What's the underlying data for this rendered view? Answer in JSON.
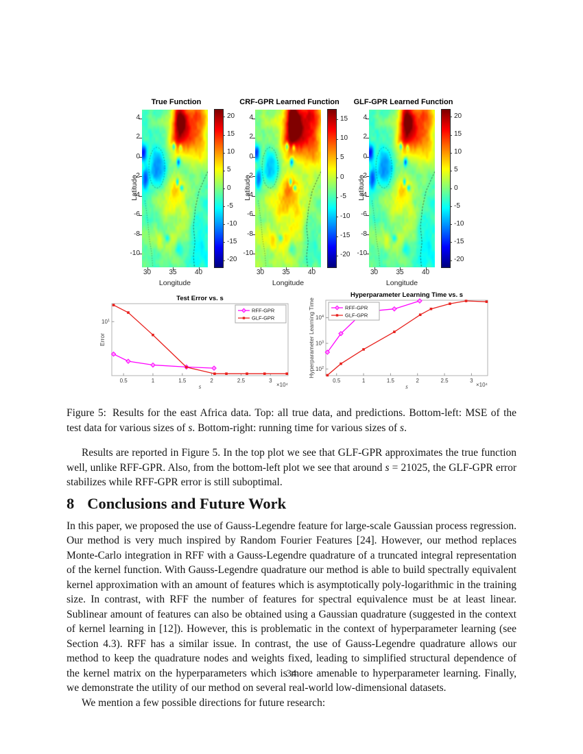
{
  "section": {
    "number": "8",
    "title": "Conclusions and Future Work"
  },
  "page_number": "34",
  "caption": {
    "label": "Figure 5:",
    "seg1": "Results for the east Africa data. Top: all true data, and predictions. Bottom-left: MSE of the test data for various sizes of ",
    "s1": "s",
    "seg2": ". Bottom-right: running time for various sizes of ",
    "s2": "s",
    "seg3": "."
  },
  "paragraph1": {
    "seg1": "Results are reported in Figure 5. In the top plot we see that GLF-GPR approximates the true function well, unlike RFF-GPR. Also, from the bottom-left plot we see that around ",
    "s": "s",
    "seg2": " = 21025, the GLF-GPR error stabilizes while RFF-GPR error is still suboptimal."
  },
  "conclusion_paragraph": "In this paper, we proposed the use of Gauss-Legendre feature for large-scale Gaussian process regression. Our method is very much inspired by Random Fourier Features [24]. However, our method replaces Monte-Carlo integration in RFF with a Gauss-Legendre quadrature of a truncated integral representation of the kernel function. With Gauss-Legendre quadrature our method is able to build spectrally equivalent kernel approximation with an amount of features which is asymptotically poly-logarithmic in the training size. In contrast, with RFF the number of features for spectral equivalence must be at least linear. Sublinear amount of features can also be obtained using a Gaussian quadrature (suggested in the context of kernel learning in [12]). However, this is problematic in the context of hyperparameter learning (see Section 4.3). RFF has a similar issue. In contrast, the use of Gauss-Legendre quadrature allows our method to keep the quadrature nodes and weights fixed, leading to simplified structural dependence of the kernel matrix on the hyperparameters which is more amenable to hyperparameter learning. Finally, we demonstrate the utility of our method on several real-world low-dimensional datasets.",
  "future_line": "We mention a few possible directions for future research:",
  "chart_data": [
    {
      "type": "heatmap",
      "title": "True Function",
      "xlabel": "Longitude",
      "ylabel": "Latitude",
      "xticks": [
        30,
        35,
        40
      ],
      "yticks": [
        4,
        2,
        0,
        -2,
        -4,
        -6,
        -8,
        -10
      ],
      "xlim": [
        29.0,
        41.8
      ],
      "ylim": [
        -11.4,
        4.9
      ],
      "colormap": "jet",
      "colorbar_ticks": [
        20,
        15,
        10,
        5,
        0,
        -5,
        -10,
        -15,
        -20
      ],
      "colorbar_lim": [
        -22,
        22
      ],
      "description": "East Africa temperature-like field: red maximum over Ethiopian highlands (lat 2..5, lon 34..40), light-blue Lake Victoria near (32,-1), small deep-blue rift-valley lakes, cyan-green background, dashed coastline on the east.",
      "field_model": {
        "base_offset": -5.4,
        "octaves": [
          [
            0.5,
            3.6
          ],
          [
            1.1,
            2.6
          ],
          [
            2.6,
            1.6
          ]
        ],
        "bumps": [
          [
            36.3,
            3.9,
            20,
            1.0,
            1.7
          ],
          [
            37.9,
            2.3,
            13,
            2.0,
            1.5
          ],
          [
            39.8,
            4.4,
            11,
            1.6,
            1.1
          ],
          [
            40.8,
            0.5,
            6,
            1.3,
            1.5
          ],
          [
            35.1,
            1.6,
            5,
            0.9,
            0.8
          ],
          [
            36.1,
            -2.9,
            8,
            1.3,
            0.9
          ],
          [
            34.5,
            -4.4,
            6,
            1.6,
            1.0
          ],
          [
            36.8,
            -6.3,
            4,
            1.6,
            1.2
          ],
          [
            33.4,
            -8.7,
            5,
            1.7,
            0.9
          ],
          [
            31.9,
            -1.1,
            -10,
            1.2,
            1.45
          ],
          [
            29.2,
            0.4,
            -15,
            0.5,
            0.6
          ],
          [
            29.6,
            -2.3,
            -9,
            0.5,
            0.8
          ],
          [
            35.2,
            1.1,
            -12,
            0.25,
            0.3
          ],
          [
            36.5,
            1.0,
            -9,
            0.22,
            0.25
          ],
          [
            36.1,
            -0.5,
            -13,
            0.28,
            0.33
          ],
          [
            35.9,
            -2.6,
            -13,
            0.22,
            0.28
          ],
          [
            36.7,
            -3.2,
            -11,
            0.26,
            0.24
          ],
          [
            34.0,
            -8.4,
            -8,
            0.33,
            0.28
          ],
          [
            36.2,
            -9.6,
            -5,
            0.8,
            0.5
          ],
          [
            40.6,
            -8.5,
            -3,
            1.8,
            2.2
          ]
        ],
        "coast": [
          [
            41.8,
            -1.5
          ],
          [
            41.1,
            -2.3
          ],
          [
            40.1,
            -3.5
          ],
          [
            39.4,
            -5.2
          ],
          [
            39.0,
            -7.2
          ],
          [
            39.3,
            -8.8
          ],
          [
            39.0,
            -10.2
          ],
          [
            39.2,
            -11.4
          ]
        ],
        "border": [
          [
            29.6,
            -4.5
          ],
          [
            30.1,
            -6.5
          ],
          [
            30.4,
            -8.3
          ],
          [
            30.9,
            -10.0
          ],
          [
            31.1,
            -11.4
          ]
        ],
        "lake_outline": [
          31.9,
          -1.1,
          1.55,
          2.1
        ]
      }
    },
    {
      "type": "heatmap",
      "title": "CRF-GPR Learned Function",
      "xlabel": "Longitude",
      "ylabel": "Latitude",
      "xticks": [
        30,
        35,
        40
      ],
      "yticks": [
        4,
        2,
        0,
        -2,
        -4,
        -6,
        -8,
        -10
      ],
      "xlim": [
        29.0,
        41.8
      ],
      "ylim": [
        -11.4,
        4.9
      ],
      "colormap": "jet",
      "colorbar_ticks": [
        15,
        10,
        5,
        0,
        -5,
        -10,
        -15,
        -20
      ],
      "colorbar_lim": [
        -23,
        17.5
      ],
      "description": "RFF/CRF-GPR prediction of the same field; visually similar but smoother."
    },
    {
      "type": "heatmap",
      "title": "GLF-GPR Learned Function",
      "xlabel": "Longitude",
      "ylabel": "Latitude",
      "xticks": [
        30,
        35,
        40
      ],
      "yticks": [
        4,
        2,
        0,
        -2,
        -4,
        -6,
        -8,
        -10
      ],
      "xlim": [
        29.0,
        41.8
      ],
      "ylim": [
        -11.4,
        4.9
      ],
      "colormap": "jet",
      "colorbar_ticks": [
        20,
        15,
        10,
        5,
        0,
        -5,
        -10,
        -15,
        -20
      ],
      "colorbar_lim": [
        -22,
        22
      ],
      "description": "GLF-GPR prediction closely matching the true function."
    },
    {
      "type": "line",
      "title": "Test Error vs. s",
      "xlabel": "s",
      "ylabel": "Error",
      "x_unit_label": "×10⁴",
      "x_scale": "linear",
      "y_scale": "log",
      "xlim": [
        0.3,
        3.3
      ],
      "ylim": [
        1.35,
        19.5
      ],
      "xticks": [
        "0.5",
        "1",
        "1.5",
        "2",
        "2.5",
        "3"
      ],
      "ytick_exponents": [
        1
      ],
      "legend_position": "top-right",
      "series": [
        {
          "name": "RFF-GPR",
          "color": "#ff00ff",
          "marker": "diamond",
          "x": [
            0.33,
            0.58,
            1.0,
            1.57,
            2.04
          ],
          "y": [
            3.0,
            2.3,
            2.0,
            1.86,
            1.78
          ]
        },
        {
          "name": "GLF-GPR",
          "color": "#e8201c",
          "marker": "square",
          "x": [
            0.33,
            0.58,
            1.0,
            1.57,
            2.05,
            2.25,
            2.6,
            2.9,
            3.28
          ],
          "y": [
            18.5,
            14,
            6.1,
            1.85,
            1.45,
            1.45,
            1.45,
            1.45,
            1.45
          ]
        }
      ]
    },
    {
      "type": "line",
      "title": "Hyperparameter Learning Time vs. s",
      "xlabel": "s",
      "ylabel": "Hyperparameter Learning Time",
      "x_unit_label": "×10⁴",
      "x_scale": "linear",
      "y_scale": "log",
      "xlim": [
        0.3,
        3.3
      ],
      "ylim": [
        55,
        48000
      ],
      "xticks": [
        "0.5",
        "1",
        "1.5",
        "2",
        "2.5",
        "3"
      ],
      "ytick_exponents": [
        2,
        3,
        4
      ],
      "legend_position": "top-left",
      "series": [
        {
          "name": "RFF-GPR",
          "color": "#ff00ff",
          "marker": "diamond",
          "x": [
            0.33,
            0.58,
            1.0,
            1.57,
            2.04
          ],
          "y": [
            450,
            2400,
            17000,
            22000,
            45000
          ]
        },
        {
          "name": "GLF-GPR",
          "color": "#e8201c",
          "marker": "square",
          "x": [
            0.33,
            0.58,
            1.0,
            1.57,
            2.05,
            2.25,
            2.6,
            2.9,
            3.28
          ],
          "y": [
            57,
            160,
            580,
            2800,
            13000,
            22000,
            35000,
            45000,
            42000
          ]
        }
      ]
    }
  ]
}
